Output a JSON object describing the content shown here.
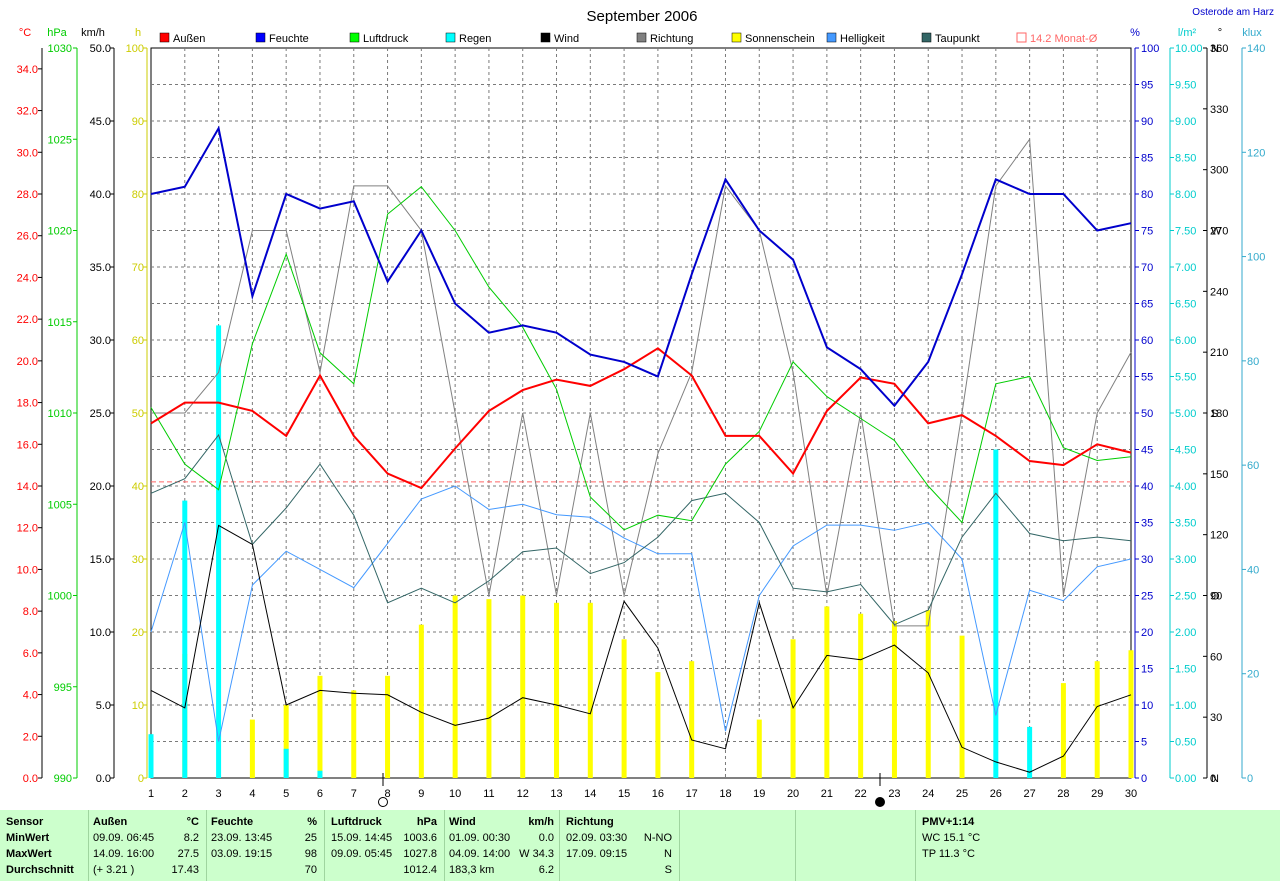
{
  "title": "September 2006",
  "location": "Osterode am Harz",
  "left_units": {
    "temp": "°C",
    "pressure": "hPa",
    "wind": "km/h",
    "sun": "h"
  },
  "right_units": {
    "humidity": "%",
    "rain": "l/m²",
    "direction": "°",
    "light": "klux"
  },
  "legend": [
    {
      "label": "Außen",
      "color": "#ff0000"
    },
    {
      "label": "Feuchte",
      "color": "#0000ff"
    },
    {
      "label": "Luftdruck",
      "color": "#00ff00"
    },
    {
      "label": "Regen",
      "color": "#00ffff"
    },
    {
      "label": "Wind",
      "color": "#000000"
    },
    {
      "label": "Richtung",
      "color": "#808080"
    },
    {
      "label": "Sonnenschein",
      "color": "#ffff00"
    },
    {
      "label": "Helligkeit",
      "color": "#4499ff"
    },
    {
      "label": "Taupunkt",
      "color": "#336666"
    },
    {
      "label": "14.2 Monat-Ø",
      "color": "#ff6666"
    }
  ],
  "chart_data": {
    "type": "line",
    "x": [
      1,
      2,
      3,
      4,
      5,
      6,
      7,
      8,
      9,
      10,
      11,
      12,
      13,
      14,
      15,
      16,
      17,
      18,
      19,
      20,
      21,
      22,
      23,
      24,
      25,
      26,
      27,
      28,
      29,
      30
    ],
    "monthly_avg_temp": 14.2,
    "axes": {
      "temp": {
        "label": "°C",
        "ticks": [
          "0.0",
          "2.0",
          "4.0",
          "6.0",
          "8.0",
          "10.0",
          "12.0",
          "14.0",
          "16.0",
          "18.0",
          "20.0",
          "22.0",
          "24.0",
          "26.0",
          "28.0",
          "30.0",
          "32.0",
          "34.0"
        ],
        "range": [
          0,
          35
        ]
      },
      "pressure": {
        "label": "hPa",
        "ticks": [
          "990",
          "995",
          "1000",
          "1005",
          "1010",
          "1015",
          "1020",
          "1025",
          "1030"
        ],
        "range": [
          990,
          1030
        ]
      },
      "wind": {
        "label": "km/h",
        "ticks": [
          "0.0",
          "5.0",
          "10.0",
          "15.0",
          "20.0",
          "25.0",
          "30.0",
          "35.0",
          "40.0",
          "45.0",
          "50.0"
        ],
        "range": [
          0,
          50
        ]
      },
      "sun": {
        "label": "h",
        "ticks": [
          "0",
          "10",
          "20",
          "30",
          "40",
          "50",
          "60",
          "70",
          "80",
          "90",
          "100"
        ],
        "range": [
          0,
          100
        ]
      },
      "humidity": {
        "label": "%",
        "ticks": [
          "0",
          "5",
          "10",
          "15",
          "20",
          "25",
          "30",
          "35",
          "40",
          "45",
          "50",
          "55",
          "60",
          "65",
          "70",
          "75",
          "80",
          "85",
          "90",
          "95",
          "100"
        ],
        "range": [
          0,
          100
        ]
      },
      "rain": {
        "label": "l/m²",
        "ticks": [
          "0.00",
          "0.50",
          "1.00",
          "1.50",
          "2.00",
          "2.50",
          "3.00",
          "3.50",
          "4.00",
          "4.50",
          "5.00",
          "5.50",
          "6.00",
          "6.50",
          "7.00",
          "7.50",
          "8.00",
          "8.50",
          "9.00",
          "9.50",
          "10.00"
        ],
        "range": [
          0,
          10
        ]
      },
      "direction": {
        "label": "°",
        "ticks": [
          "0",
          "30",
          "60",
          "90",
          "120",
          "150",
          "180",
          "210",
          "240",
          "270",
          "300",
          "330",
          "360"
        ],
        "compass": [
          "N",
          "",
          "",
          "O",
          "",
          "",
          "S",
          "",
          "",
          "W",
          "",
          "",
          "N"
        ],
        "range": [
          0,
          360
        ]
      },
      "light": {
        "label": "klux",
        "ticks": [
          "0",
          "20",
          "40",
          "60",
          "80",
          "100",
          "120",
          "140"
        ],
        "range": [
          0,
          140
        ]
      }
    },
    "series": [
      {
        "name": "Außen",
        "axis": "temp",
        "color": "#ff0000",
        "width": 2,
        "values": [
          17.0,
          18.0,
          18.0,
          17.6,
          16.4,
          19.3,
          16.4,
          14.6,
          13.9,
          15.8,
          17.6,
          18.6,
          19.1,
          18.8,
          19.6,
          20.6,
          19.3,
          16.4,
          16.4,
          14.6,
          17.6,
          19.2,
          18.9,
          17.0,
          17.4,
          16.4,
          15.2,
          15.0,
          16.0,
          15.6
        ]
      },
      {
        "name": "Feuchte",
        "axis": "humidity",
        "color": "#0000cc",
        "width": 2,
        "values": [
          80,
          81,
          89,
          66,
          80,
          78,
          79,
          68,
          75,
          65,
          61,
          62,
          61,
          58,
          57,
          55,
          69,
          82,
          75,
          71,
          59,
          56,
          51,
          57,
          69,
          82,
          80,
          80,
          75,
          76
        ]
      },
      {
        "name": "Luftdruck",
        "axis": "pressure",
        "color": "#00cc00",
        "width": 1,
        "values": [
          1010.3,
          1007.2,
          1005.8,
          1013.8,
          1018.7,
          1013.3,
          1011.6,
          1020.9,
          1022.4,
          1020.0,
          1016.9,
          1014.7,
          1011.3,
          1005.4,
          1003.6,
          1004.4,
          1004.1,
          1007.2,
          1009.0,
          1012.8,
          1010.9,
          1009.7,
          1008.5,
          1006.0,
          1004.0,
          1011.6,
          1012.0,
          1008.1,
          1007.4,
          1007.6
        ]
      },
      {
        "name": "Taupunkt",
        "axis": "humidity",
        "color": "#336666",
        "width": 1,
        "values": [
          39,
          41,
          47,
          32,
          37,
          43,
          36,
          24,
          26,
          24,
          27,
          31,
          31.5,
          28,
          29.5,
          33,
          38,
          39,
          35,
          26,
          25.5,
          26.5,
          21,
          23,
          33,
          39,
          33.5,
          32.5,
          33,
          32.5
        ]
      },
      {
        "name": "Helligkeit",
        "axis": "light",
        "color": "#4499ff",
        "width": 1,
        "values": [
          28.0,
          49.0,
          7.0,
          37.0,
          43.5,
          40.0,
          36.5,
          45.0,
          53.5,
          56.0,
          51.5,
          52.5,
          50.5,
          50.0,
          46.0,
          43.0,
          43.0,
          9.0,
          35.0,
          44.5,
          48.5,
          48.5,
          47.5,
          49.0,
          42.0,
          12.0,
          36.0,
          34.0,
          40.5,
          42.0
        ]
      },
      {
        "name": "Richtung",
        "axis": "direction",
        "color": "#808080",
        "width": 1,
        "values": [
          180,
          180,
          200,
          270,
          270,
          200,
          292,
          292,
          270,
          180,
          90,
          180,
          90,
          180,
          90,
          160,
          200,
          292,
          270,
          200,
          90,
          180,
          75,
          75,
          180,
          292,
          315,
          90,
          180,
          210
        ]
      },
      {
        "name": "Wind",
        "axis": "wind",
        "color": "#000000",
        "width": 1,
        "values": [
          6.0,
          4.8,
          17.3,
          16.0,
          5.0,
          6.0,
          5.8,
          5.7,
          4.5,
          3.6,
          4.1,
          5.5,
          5.0,
          4.4,
          12.1,
          8.9,
          2.6,
          2.0,
          12.0,
          4.8,
          8.4,
          8.1,
          9.1,
          7.2,
          2.1,
          1.1,
          0.4,
          1.5,
          4.9,
          5.7
        ]
      },
      {
        "name": "Sonnenschein",
        "axis": "sun",
        "color": "#ffff00",
        "type": "bar",
        "values": [
          0,
          17,
          0,
          8,
          10,
          14,
          12,
          14,
          21,
          25,
          24.5,
          25,
          24,
          24,
          19,
          14.5,
          16,
          0,
          8,
          19,
          23.5,
          22.5,
          21.5,
          23,
          19.5,
          0,
          0,
          13,
          16,
          17.5
        ]
      },
      {
        "name": "Regen",
        "axis": "rain",
        "color": "#00ffff",
        "type": "bar",
        "values": [
          0.6,
          3.8,
          6.2,
          0,
          0.4,
          0.1,
          0,
          0,
          0,
          0,
          0,
          0,
          0,
          0,
          0,
          0,
          0,
          0,
          0,
          0,
          0,
          0,
          0,
          0,
          0,
          4.5,
          0.7,
          0,
          0,
          0
        ]
      }
    ]
  },
  "footer": {
    "sensor": {
      "title": "Sensor",
      "min": "MinWert",
      "max": "MaxWert",
      "avg": "Durchschnitt"
    },
    "aussen": {
      "title": "Außen",
      "unit": "°C",
      "min_when": "09.09.  06:45",
      "min_val": "8.2",
      "max_when": "14.09.  16:00",
      "max_val": "27.5",
      "avg_note": "(+ 3.21 )",
      "avg_val": "17.43"
    },
    "feuchte": {
      "title": "Feuchte",
      "unit": "%",
      "min_when": "23.09.  13:45",
      "min_val": "25",
      "max_when": "03.09.  19:15",
      "max_val": "98",
      "avg_val": "70"
    },
    "luftdruck": {
      "title": "Luftdruck",
      "unit": "hPa",
      "min_when": "15.09.  14:45",
      "min_val": "1003.6",
      "max_when": "09.09.  05:45",
      "max_val": "1027.8",
      "avg_val": "1012.4"
    },
    "wind": {
      "title": "Wind",
      "unit": "km/h",
      "min_when": "01.09.  00:30",
      "min_val": "0.0",
      "max_when": "04.09.  14:00",
      "max_val": "W 34.3",
      "avg_note": "183,3 km",
      "avg_val": "6.2"
    },
    "richtung": {
      "title": "Richtung",
      "min_when": "02.09.  03:30",
      "min_val": "N-NO",
      "max_when": "17.09.  09:15",
      "max_val": "N",
      "avg_val": "S"
    },
    "pmv": {
      "title": "PMV+1:14",
      "wc": "WC 15.1 °C",
      "tp": "TP 11.3 °C"
    }
  }
}
